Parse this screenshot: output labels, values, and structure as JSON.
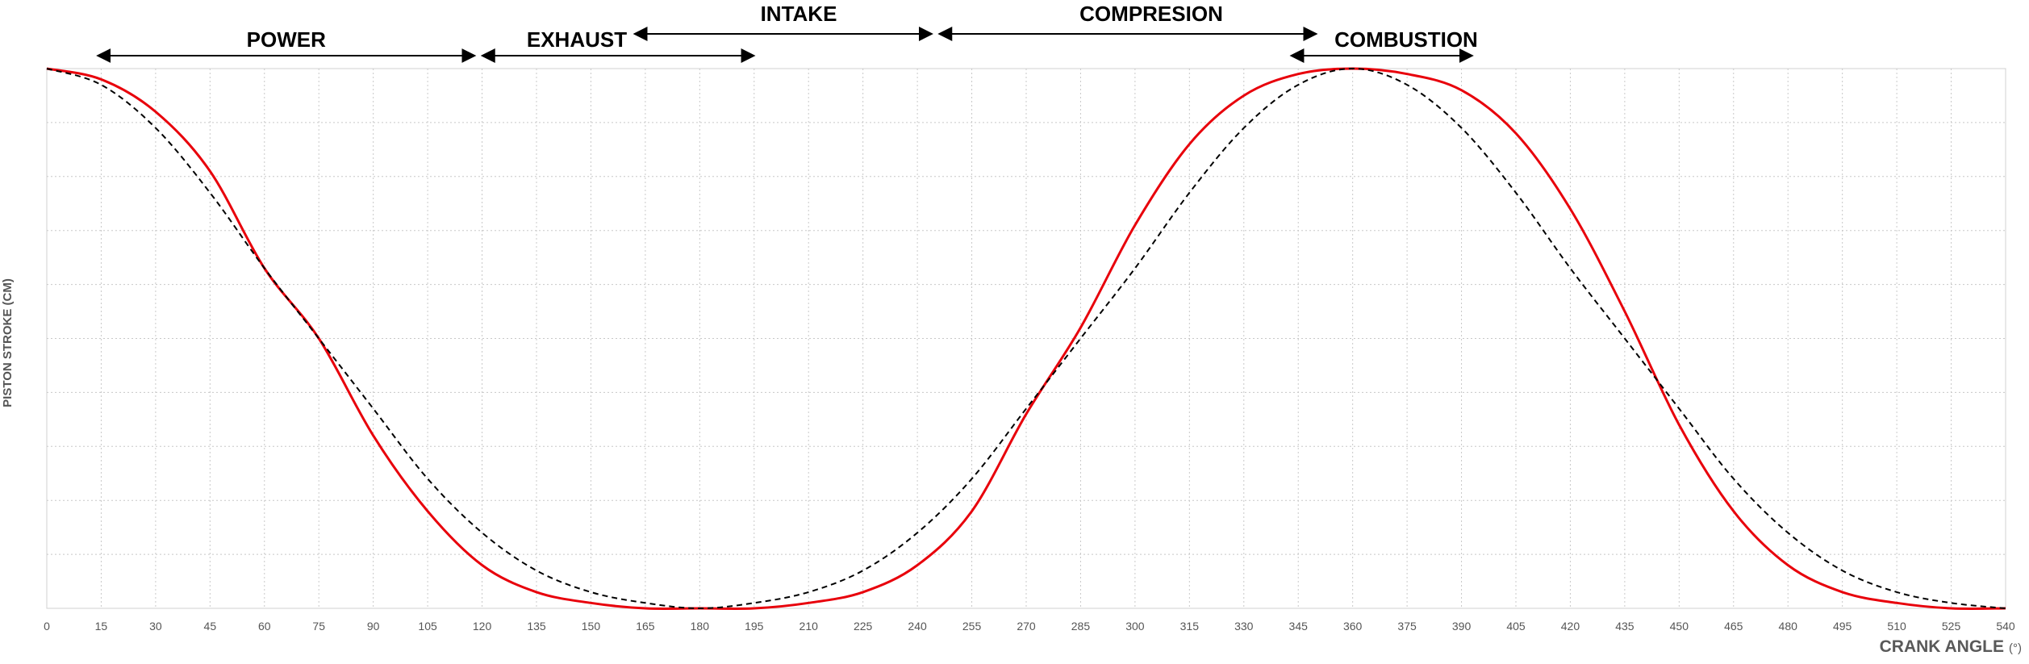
{
  "chart_data": {
    "type": "line",
    "title": "",
    "xlabel": "CRANK ANGLE",
    "xunit": "(°)",
    "ylabel": "PISTON STROKE (CM)",
    "xlim": [
      0,
      540
    ],
    "x_ticks": [
      0,
      15,
      30,
      45,
      60,
      75,
      90,
      105,
      120,
      135,
      150,
      165,
      180,
      195,
      210,
      225,
      240,
      255,
      270,
      285,
      300,
      315,
      330,
      345,
      360,
      375,
      390,
      405,
      420,
      435,
      450,
      465,
      480,
      495,
      510,
      525,
      540
    ],
    "ylim": [
      0,
      1
    ],
    "grid": true,
    "series": [
      {
        "name": "",
        "style": "solid",
        "color": "#e8000b",
        "x": [
          0,
          15,
          30,
          45,
          60,
          75,
          90,
          105,
          120,
          135,
          150,
          165,
          180,
          195,
          210,
          225,
          240,
          255,
          270,
          285,
          300,
          315,
          330,
          345,
          360,
          375,
          390,
          405,
          420,
          435,
          450,
          465,
          480,
          495,
          510,
          525,
          540
        ],
        "y": [
          1.0,
          0.98,
          0.92,
          0.81,
          0.63,
          0.5,
          0.32,
          0.18,
          0.08,
          0.03,
          0.01,
          0.0,
          0.0,
          0.0,
          0.01,
          0.03,
          0.08,
          0.18,
          0.36,
          0.52,
          0.71,
          0.86,
          0.95,
          0.99,
          1.0,
          0.99,
          0.96,
          0.88,
          0.74,
          0.55,
          0.34,
          0.18,
          0.08,
          0.03,
          0.01,
          0.0,
          0.0
        ]
      },
      {
        "name": "",
        "style": "dashed",
        "color": "#000000",
        "x": [
          0,
          15,
          30,
          45,
          60,
          75,
          90,
          105,
          120,
          135,
          150,
          165,
          180,
          195,
          210,
          225,
          240,
          255,
          270,
          285,
          300,
          315,
          330,
          345,
          360,
          375,
          390,
          405,
          420,
          435,
          450,
          465,
          480,
          495,
          510,
          525,
          540
        ],
        "y": [
          1.0,
          0.97,
          0.89,
          0.77,
          0.63,
          0.5,
          0.37,
          0.24,
          0.14,
          0.07,
          0.03,
          0.01,
          0.0,
          0.01,
          0.03,
          0.07,
          0.14,
          0.24,
          0.37,
          0.5,
          0.63,
          0.77,
          0.89,
          0.97,
          1.0,
          0.97,
          0.89,
          0.77,
          0.63,
          0.5,
          0.37,
          0.24,
          0.14,
          0.07,
          0.03,
          0.01,
          0.0
        ]
      }
    ],
    "annotations": [
      {
        "label": "POWER",
        "x_start": 14,
        "x_end": 118,
        "tier": "low"
      },
      {
        "label": "EXHAUST",
        "x_start": 120,
        "x_end": 195,
        "tier": "low"
      },
      {
        "label": "INTAKE",
        "x_start": 162,
        "x_end": 244,
        "tier": "high"
      },
      {
        "label": "COMPRESION",
        "x_start": 246,
        "x_end": 350,
        "tier": "high"
      },
      {
        "label": "COMBUSTION",
        "x_start": 343,
        "x_end": 393,
        "tier": "low"
      }
    ]
  }
}
